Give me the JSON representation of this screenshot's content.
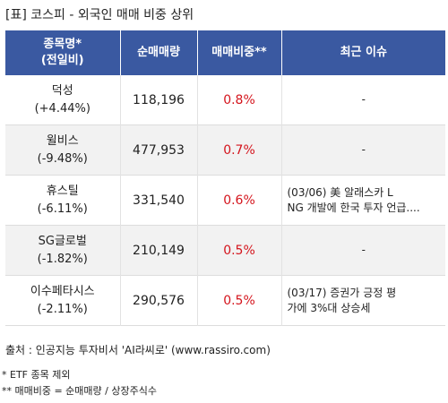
{
  "title": "[표] 코스피 - 외국인 매매 비중 상위",
  "headers": {
    "name_line1": "종목명*",
    "name_line2": "(전일비)",
    "volume": "순매매량",
    "ratio": "매매비중**",
    "issue": "최근 이슈"
  },
  "rows": [
    {
      "name": "덕성",
      "change": "(+4.44%)",
      "volume": "118,196",
      "ratio": "0.8%",
      "issue_line1": "-",
      "issue_line2": ""
    },
    {
      "name": "윌비스",
      "change": "(-9.48%)",
      "volume": "477,953",
      "ratio": "0.7%",
      "issue_line1": "-",
      "issue_line2": ""
    },
    {
      "name": "휴스틸",
      "change": "(-6.11%)",
      "volume": "331,540",
      "ratio": "0.6%",
      "issue_line1": "(03/06) 美 알래스카 L",
      "issue_line2": "NG 개발에 한국 투자 언급...."
    },
    {
      "name": "SG글로벌",
      "change": "(-1.82%)",
      "volume": "210,149",
      "ratio": "0.5%",
      "issue_line1": "-",
      "issue_line2": ""
    },
    {
      "name": "이수페타시스",
      "change": "(-2.11%)",
      "volume": "290,576",
      "ratio": "0.5%",
      "issue_line1": "(03/17) 증권가 긍정 평",
      "issue_line2": "가에 3%대 상승세"
    }
  ],
  "source": "출처 : 인공지능 투자비서 'AI라씨로' (www.rassiro.com)",
  "note1": "* ETF 종목 제외",
  "note2": "** 매매비중 = 순매매량 / 상장주식수"
}
